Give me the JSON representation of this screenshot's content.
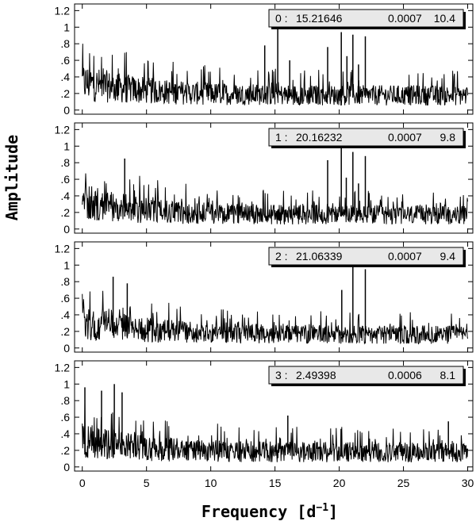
{
  "chart_data": {
    "type": "line",
    "xlabel": "Frequency [d",
    "xlabel_sup": "−1",
    "xlabel_close": "]",
    "ylabel": "Amplitude",
    "xlim": [
      -0.6,
      30.4
    ],
    "ylim": [
      -0.05,
      1.28
    ],
    "x_ticks": [
      0,
      5,
      10,
      15,
      20,
      25,
      30
    ],
    "x_tick_labels": [
      "0",
      "5",
      "10",
      "15",
      "20",
      "25",
      "30"
    ],
    "y_ticks": [
      0,
      0.2,
      0.4,
      0.6,
      0.8,
      1.0,
      1.2
    ],
    "y_tick_labels": [
      "0",
      ".2",
      ".4",
      ".6",
      ".8",
      "1",
      "1.2"
    ],
    "grid": false,
    "panels": [
      {
        "index": "0 :",
        "frequency": "15.21646",
        "error": "0.0007",
        "snr": "10.4",
        "noise": {
          "start": 0.43,
          "decay": 0.2,
          "tail": 0.22
        },
        "peaks": [
          {
            "x": 15.216,
            "y": 1.0
          },
          {
            "x": 20.162,
            "y": 0.94
          },
          {
            "x": 21.063,
            "y": 0.91
          },
          {
            "x": 22.03,
            "y": 0.89
          },
          {
            "x": 14.2,
            "y": 0.78
          },
          {
            "x": 19.1,
            "y": 0.76
          },
          {
            "x": 16.15,
            "y": 0.6
          },
          {
            "x": 20.6,
            "y": 0.65
          },
          {
            "x": 21.5,
            "y": 0.55
          }
        ]
      },
      {
        "index": "1 :",
        "frequency": "20.16232",
        "error": "0.0007",
        "snr": "9.8",
        "noise": {
          "start": 0.43,
          "decay": 0.2,
          "tail": 0.21
        },
        "peaks": [
          {
            "x": 20.162,
            "y": 1.0
          },
          {
            "x": 21.063,
            "y": 0.93
          },
          {
            "x": 22.03,
            "y": 0.88
          },
          {
            "x": 19.1,
            "y": 0.83
          },
          {
            "x": 20.55,
            "y": 0.62
          },
          {
            "x": 21.5,
            "y": 0.55
          },
          {
            "x": 3.3,
            "y": 0.85
          }
        ]
      },
      {
        "index": "2 :",
        "frequency": "21.06339",
        "error": "0.0007",
        "snr": "9.4",
        "noise": {
          "start": 0.42,
          "decay": 0.2,
          "tail": 0.2
        },
        "peaks": [
          {
            "x": 21.063,
            "y": 1.0
          },
          {
            "x": 22.03,
            "y": 0.95
          },
          {
            "x": 20.2,
            "y": 0.7
          },
          {
            "x": 2.4,
            "y": 0.86
          },
          {
            "x": 3.5,
            "y": 0.78
          }
        ]
      },
      {
        "index": "3 :",
        "frequency": "2.49398",
        "error": "0.0006",
        "snr": "8.1",
        "noise": {
          "start": 0.42,
          "decay": 0.18,
          "tail": 0.22
        },
        "peaks": [
          {
            "x": 2.494,
            "y": 1.0
          },
          {
            "x": 1.5,
            "y": 0.92
          },
          {
            "x": 0.2,
            "y": 0.96
          },
          {
            "x": 3.1,
            "y": 0.9
          },
          {
            "x": 16.0,
            "y": 0.62
          },
          {
            "x": 28.5,
            "y": 0.55
          }
        ]
      }
    ]
  }
}
